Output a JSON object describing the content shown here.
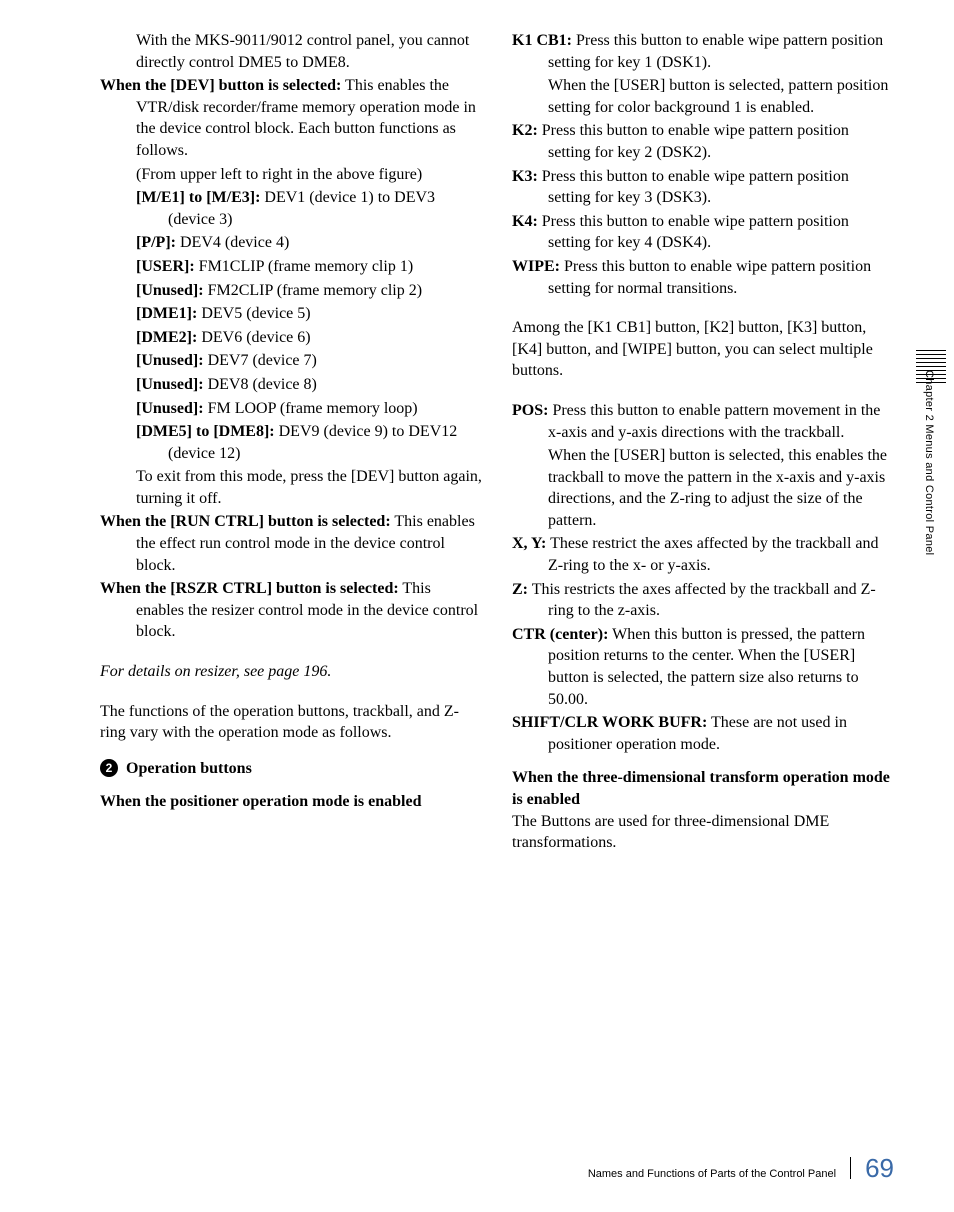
{
  "left": {
    "p0a": "With the MKS-9011/9012 control panel, you cannot directly control DME5 to DME8.",
    "dev_lead_b": "When the [DEV] button is selected:",
    "dev_lead": " This enables the VTR/disk recorder/frame memory operation mode in the device control block. Each button functions as follows.",
    "dev_from": "(From upper left to right in the above figure)",
    "me_b": "[M/E1] to [M/E3]:",
    "me": " DEV1 (device 1) to DEV3 (device 3)",
    "pp_b": "[P/P]:",
    "pp": " DEV4 (device 4)",
    "user_b": "[USER]:",
    "user": " FM1CLIP (frame memory clip 1)",
    "un1_b": "[Unused]:",
    "un1": " FM2CLIP (frame memory clip 2)",
    "dme1_b": "[DME1]:",
    "dme1": " DEV5 (device 5)",
    "dme2_b": "[DME2]:",
    "dme2": " DEV6 (device 6)",
    "un2_b": "[Unused]:",
    "un2": " DEV7 (device 7)",
    "un3_b": "[Unused]:",
    "un3": " DEV8 (device 8)",
    "un4_b": "[Unused]:",
    "un4": " FM LOOP (frame memory loop)",
    "dme58_b": "[DME5] to [DME8]:",
    "dme58": " DEV9 (device 9) to DEV12 (device 12)",
    "exit": "To exit from this mode, press the [DEV] button again, turning it off.",
    "run_b": "When the [RUN CTRL] button is selected:",
    "run": " This enables the effect run control mode in the device control block.",
    "rszr_b": "When the [RSZR CTRL] button is selected:",
    "rszr": " This enables the resizer control mode in the device control block.",
    "resizer_note": "For details on resizer, see page 196.",
    "functions_para": "The functions of the operation buttons, trackball, and Z-ring vary with the operation mode as follows.",
    "section_num": "2",
    "section_title": "Operation buttons",
    "subheading_pos": "When the positioner operation mode is enabled"
  },
  "right": {
    "k1_b": "K1 CB1:",
    "k1": " Press this button to enable wipe pattern position setting for key 1 (DSK1).",
    "k1_extra": "When the [USER] button is selected, pattern position setting for color background 1 is enabled.",
    "k2_b": "K2:",
    "k2": " Press this button to enable wipe pattern position setting for key 2 (DSK2).",
    "k3_b": "K3:",
    "k3": " Press this button to enable wipe pattern position setting for key 3 (DSK3).",
    "k4_b": "K4:",
    "k4": " Press this button to enable wipe pattern position setting for key 4 (DSK4).",
    "wipe_b": "WIPE:",
    "wipe": " Press this button to enable wipe pattern position setting for normal transitions.",
    "among": "Among the [K1 CB1] button, [K2] button, [K3] button, [K4] button, and [WIPE] button, you can select multiple buttons.",
    "pos_b": "POS:",
    "pos": " Press this button to enable pattern movement in the x-axis and y-axis directions with the trackball.",
    "pos_extra": "When the [USER] button is selected, this enables the trackball to move the pattern in the x-axis and y-axis directions, and the Z-ring to adjust the size of the pattern.",
    "xy_b": "X, Y:",
    "xy": " These restrict the axes affected by the trackball and Z-ring to the x- or y-axis.",
    "z_b": "Z:",
    "z": " This restricts the axes affected by the trackball and Z-ring to the z-axis.",
    "ctr_b": "CTR (center):",
    "ctr": " When this button is pressed, the pattern position returns to the center. When the [USER] button is selected, the pattern size also returns to 50.00.",
    "shift_b": "SHIFT/CLR WORK BUFR:",
    "shift": " These are not used in positioner operation mode.",
    "subheading_3d": "When the three-dimensional transform operation mode is enabled",
    "threed_para": "The Buttons are used for three-dimensional DME transformations."
  },
  "sidebar": "Chapter 2  Menus and Control Panel",
  "footer_text": "Names and Functions of Parts of the Control Panel",
  "page_number": "69"
}
